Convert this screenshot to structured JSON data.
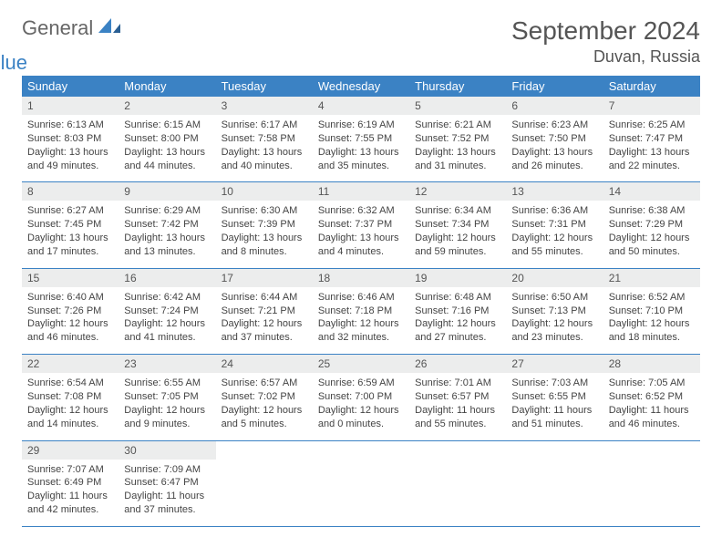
{
  "brand": {
    "word1": "General",
    "word2": "Blue"
  },
  "title": "September 2024",
  "location": "Duvan, Russia",
  "colors": {
    "header_bg": "#3b82c4",
    "header_text": "#ffffff",
    "daynum_bg": "#eceded",
    "body_text": "#444444",
    "border": "#3b82c4",
    "page_bg": "#ffffff",
    "brand_gray": "#666666",
    "brand_blue": "#3b82c4"
  },
  "weekdays": [
    "Sunday",
    "Monday",
    "Tuesday",
    "Wednesday",
    "Thursday",
    "Friday",
    "Saturday"
  ],
  "labels": {
    "sunrise": "Sunrise:",
    "sunset": "Sunset:",
    "daylight": "Daylight:"
  },
  "weeks": [
    [
      {
        "n": "1",
        "sr": "6:13 AM",
        "ss": "8:03 PM",
        "dl": "13 hours and 49 minutes."
      },
      {
        "n": "2",
        "sr": "6:15 AM",
        "ss": "8:00 PM",
        "dl": "13 hours and 44 minutes."
      },
      {
        "n": "3",
        "sr": "6:17 AM",
        "ss": "7:58 PM",
        "dl": "13 hours and 40 minutes."
      },
      {
        "n": "4",
        "sr": "6:19 AM",
        "ss": "7:55 PM",
        "dl": "13 hours and 35 minutes."
      },
      {
        "n": "5",
        "sr": "6:21 AM",
        "ss": "7:52 PM",
        "dl": "13 hours and 31 minutes."
      },
      {
        "n": "6",
        "sr": "6:23 AM",
        "ss": "7:50 PM",
        "dl": "13 hours and 26 minutes."
      },
      {
        "n": "7",
        "sr": "6:25 AM",
        "ss": "7:47 PM",
        "dl": "13 hours and 22 minutes."
      }
    ],
    [
      {
        "n": "8",
        "sr": "6:27 AM",
        "ss": "7:45 PM",
        "dl": "13 hours and 17 minutes."
      },
      {
        "n": "9",
        "sr": "6:29 AM",
        "ss": "7:42 PM",
        "dl": "13 hours and 13 minutes."
      },
      {
        "n": "10",
        "sr": "6:30 AM",
        "ss": "7:39 PM",
        "dl": "13 hours and 8 minutes."
      },
      {
        "n": "11",
        "sr": "6:32 AM",
        "ss": "7:37 PM",
        "dl": "13 hours and 4 minutes."
      },
      {
        "n": "12",
        "sr": "6:34 AM",
        "ss": "7:34 PM",
        "dl": "12 hours and 59 minutes."
      },
      {
        "n": "13",
        "sr": "6:36 AM",
        "ss": "7:31 PM",
        "dl": "12 hours and 55 minutes."
      },
      {
        "n": "14",
        "sr": "6:38 AM",
        "ss": "7:29 PM",
        "dl": "12 hours and 50 minutes."
      }
    ],
    [
      {
        "n": "15",
        "sr": "6:40 AM",
        "ss": "7:26 PM",
        "dl": "12 hours and 46 minutes."
      },
      {
        "n": "16",
        "sr": "6:42 AM",
        "ss": "7:24 PM",
        "dl": "12 hours and 41 minutes."
      },
      {
        "n": "17",
        "sr": "6:44 AM",
        "ss": "7:21 PM",
        "dl": "12 hours and 37 minutes."
      },
      {
        "n": "18",
        "sr": "6:46 AM",
        "ss": "7:18 PM",
        "dl": "12 hours and 32 minutes."
      },
      {
        "n": "19",
        "sr": "6:48 AM",
        "ss": "7:16 PM",
        "dl": "12 hours and 27 minutes."
      },
      {
        "n": "20",
        "sr": "6:50 AM",
        "ss": "7:13 PM",
        "dl": "12 hours and 23 minutes."
      },
      {
        "n": "21",
        "sr": "6:52 AM",
        "ss": "7:10 PM",
        "dl": "12 hours and 18 minutes."
      }
    ],
    [
      {
        "n": "22",
        "sr": "6:54 AM",
        "ss": "7:08 PM",
        "dl": "12 hours and 14 minutes."
      },
      {
        "n": "23",
        "sr": "6:55 AM",
        "ss": "7:05 PM",
        "dl": "12 hours and 9 minutes."
      },
      {
        "n": "24",
        "sr": "6:57 AM",
        "ss": "7:02 PM",
        "dl": "12 hours and 5 minutes."
      },
      {
        "n": "25",
        "sr": "6:59 AM",
        "ss": "7:00 PM",
        "dl": "12 hours and 0 minutes."
      },
      {
        "n": "26",
        "sr": "7:01 AM",
        "ss": "6:57 PM",
        "dl": "11 hours and 55 minutes."
      },
      {
        "n": "27",
        "sr": "7:03 AM",
        "ss": "6:55 PM",
        "dl": "11 hours and 51 minutes."
      },
      {
        "n": "28",
        "sr": "7:05 AM",
        "ss": "6:52 PM",
        "dl": "11 hours and 46 minutes."
      }
    ],
    [
      {
        "n": "29",
        "sr": "7:07 AM",
        "ss": "6:49 PM",
        "dl": "11 hours and 42 minutes."
      },
      {
        "n": "30",
        "sr": "7:09 AM",
        "ss": "6:47 PM",
        "dl": "11 hours and 37 minutes."
      },
      null,
      null,
      null,
      null,
      null
    ]
  ]
}
